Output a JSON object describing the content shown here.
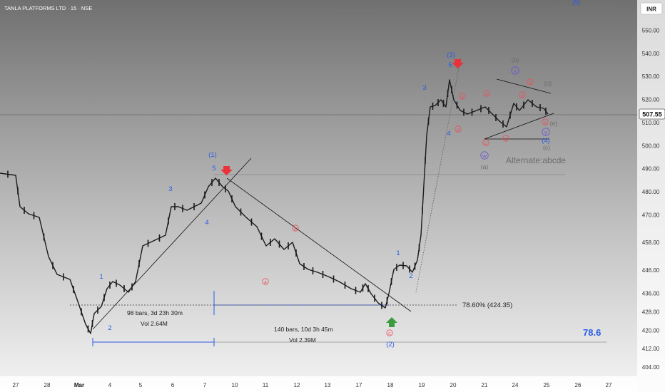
{
  "header": {
    "symbol_title": "TANLA PLATFORMS LTD · 15 · NSE",
    "currency": "INR"
  },
  "colors": {
    "bg_top": "#7a7a7a",
    "bg_bottom": "#f2f2f2",
    "candle": "#1a1a1a",
    "wave_label": "#2b5ce6",
    "sub_wave_label": "#e8505b",
    "alt_label": "#6b6b6b",
    "fib_line": "#2b5ce6",
    "arrow_down": "#e8333a",
    "arrow_up": "#3a9b40",
    "price_tag_bg": "#ffffff",
    "axis_text": "#333333"
  },
  "chart_data": {
    "type": "candlestick",
    "title": "TANLA PLATFORMS LTD · 15 · NSE",
    "currency": "INR",
    "last_price": 507.55,
    "last_price_label": "507.55",
    "y_range": [
      400,
      560
    ],
    "y_ticks": [
      404,
      412,
      420,
      428,
      436,
      446,
      458,
      470,
      480,
      490,
      500,
      510,
      520,
      530,
      540,
      550
    ],
    "y_tick_labels": [
      "404.00",
      "412.00",
      "420.00",
      "428.00",
      "436.00",
      "446.00",
      "458.00",
      "470.00",
      "480.00",
      "490.00",
      "500.00",
      "510.00",
      "520.00",
      "530.00",
      "540.00",
      "550.00"
    ],
    "x_tick_labels": [
      "27",
      "28",
      "Mar",
      "4",
      "5",
      "6",
      "7",
      "10",
      "11",
      "12",
      "13",
      "17",
      "18",
      "19",
      "20",
      "21",
      "24",
      "25",
      "26",
      "27"
    ],
    "price_path": [
      [
        0,
        481
      ],
      [
        0.5,
        478
      ],
      [
        0.9,
        468
      ],
      [
        1.3,
        462
      ],
      [
        1.7,
        448
      ],
      [
        2.0,
        440
      ],
      [
        2.3,
        434
      ],
      [
        2.5,
        420
      ],
      [
        2.7,
        416
      ],
      [
        3.0,
        420
      ],
      [
        3.3,
        426
      ],
      [
        3.6,
        432
      ],
      [
        3.9,
        438
      ],
      [
        4.2,
        440
      ],
      [
        4.5,
        436
      ],
      [
        4.8,
        444
      ],
      [
        5.0,
        452
      ],
      [
        5.3,
        452
      ],
      [
        5.6,
        458
      ],
      [
        5.9,
        458
      ],
      [
        6.1,
        465
      ],
      [
        6.4,
        467
      ],
      [
        6.7,
        470
      ],
      [
        7.0,
        472
      ],
      [
        7.2,
        476
      ],
      [
        7.5,
        480
      ],
      [
        7.8,
        472
      ],
      [
        8.0,
        474
      ],
      [
        8.2,
        468
      ],
      [
        8.5,
        464
      ],
      [
        8.8,
        460
      ],
      [
        9.1,
        454
      ],
      [
        9.4,
        450
      ],
      [
        9.6,
        444
      ],
      [
        9.9,
        450
      ],
      [
        10.2,
        450
      ],
      [
        10.5,
        450
      ],
      [
        10.8,
        450
      ],
      [
        11.0,
        444
      ],
      [
        11.3,
        440
      ],
      [
        11.6,
        438
      ],
      [
        11.9,
        436
      ],
      [
        12.2,
        434
      ],
      [
        12.5,
        432
      ],
      [
        12.8,
        430
      ],
      [
        13.1,
        428
      ],
      [
        13.4,
        430
      ],
      [
        13.6,
        428
      ],
      [
        13.9,
        424
      ],
      [
        14.1,
        426
      ],
      [
        14.4,
        428
      ],
      [
        14.7,
        432
      ],
      [
        14.9,
        428
      ],
      [
        15.1,
        424
      ],
      [
        15.3,
        422
      ],
      [
        15.5,
        426
      ],
      [
        15.7,
        436
      ],
      [
        15.9,
        440
      ],
      [
        16.1,
        442
      ],
      [
        16.4,
        440
      ],
      [
        16.7,
        442
      ],
      [
        17.0,
        444
      ],
      [
        17.2,
        446
      ],
      [
        17.4,
        458
      ],
      [
        17.5,
        476
      ],
      [
        17.7,
        490
      ],
      [
        17.8,
        500
      ],
      [
        18.0,
        510
      ],
      [
        18.2,
        512
      ],
      [
        18.5,
        513
      ],
      [
        18.7,
        515
      ],
      [
        19.0,
        512
      ],
      [
        19.2,
        520
      ],
      [
        19.4,
        528
      ],
      [
        19.6,
        517
      ],
      [
        19.8,
        513
      ],
      [
        20.0,
        510
      ],
      [
        20.3,
        507
      ],
      [
        20.6,
        512
      ],
      [
        20.9,
        508
      ],
      [
        21.2,
        508
      ],
      [
        21.5,
        502
      ],
      [
        21.8,
        507
      ],
      [
        22.1,
        504
      ],
      [
        22.4,
        502
      ],
      [
        22.7,
        520
      ],
      [
        23.0,
        512
      ],
      [
        23.3,
        514
      ],
      [
        23.6,
        510
      ],
      [
        23.9,
        512
      ],
      [
        24.2,
        508
      ],
      [
        24.5,
        506
      ]
    ],
    "trend_lines": [
      {
        "from": [
          2.7,
          412
        ],
        "to": [
          8.5,
          480
        ],
        "note": "rising support"
      },
      {
        "from": [
          7.5,
          476
        ],
        "to": [
          16.2,
          415
        ],
        "note": "falling resistance"
      },
      {
        "from": [
          19.8,
          499
        ],
        "to": [
          24.4,
          506
        ],
        "note": "triangle lower"
      },
      {
        "from": [
          20.6,
          517
        ],
        "to": [
          24.4,
          513
        ],
        "note": "triangle upper"
      }
    ],
    "fib": {
      "label": "78.60% (424.35)",
      "level": 424.35,
      "right_label": "78.6"
    },
    "alternate_label": "Alternate:abcde",
    "annotations": {
      "wave_labels": [
        "(1)",
        "5",
        "4",
        "3",
        "1",
        "2",
        "(3)",
        "5",
        "4",
        "3",
        "1",
        "2",
        "(2)",
        "(4)",
        "(5)"
      ],
      "sub_labels_red": [
        "A",
        "B",
        "C"
      ],
      "sub_labels_gray": [
        "(a)",
        "(b)",
        "(c)",
        "(d)",
        "(e)"
      ],
      "circled_blue": [
        "w",
        "x",
        "y"
      ],
      "measures": [
        {
          "bars": "98 bars, 3d 23h 30m",
          "vol": "Vol 2.64M"
        },
        {
          "bars": "140 bars, 10d 3h 45m",
          "vol": "Vol 2.39M"
        }
      ]
    }
  }
}
